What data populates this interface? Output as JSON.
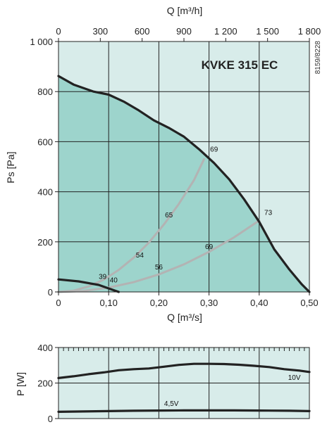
{
  "colors": {
    "bg_light": "#d8ecea",
    "fill_teal": "#9dd4cc",
    "grid": "#222222",
    "curve": "#222222",
    "system_curve": "#b3b3b3"
  },
  "chart_data": [
    {
      "type": "line",
      "title": "KVKE 315 EC",
      "code": "8159/8228",
      "xlabel": "Q [m³/s]",
      "ylabel": "Ps [Pa]",
      "x2label": "Q [m³/h]",
      "xlim": [
        0,
        0.5
      ],
      "ylim": [
        0,
        1000
      ],
      "x2lim": [
        0,
        1800
      ],
      "x_ticks": [
        0,
        0.1,
        0.2,
        0.3,
        0.4,
        0.5
      ],
      "x_tick_labels": [
        "0",
        "0,10",
        "0,20",
        "0,30",
        "0,40",
        "0,50"
      ],
      "y_ticks": [
        0,
        200,
        400,
        600,
        800,
        1000
      ],
      "y_tick_labels": [
        "0",
        "200",
        "400",
        "600",
        "800",
        "1 000"
      ],
      "x2_ticks": [
        0,
        300,
        600,
        900,
        1200,
        1500,
        1800
      ],
      "x2_tick_labels": [
        "0",
        "300",
        "600",
        "900",
        "1 200",
        "1 500",
        "1 800"
      ],
      "fan_curves": [
        {
          "x": [
            0,
            0.03,
            0.07,
            0.1,
            0.13,
            0.16,
            0.19,
            0.22,
            0.25,
            0.28,
            0.31,
            0.34,
            0.37,
            0.4,
            0.43,
            0.46,
            0.485,
            0.5
          ],
          "y": [
            862,
            828,
            800,
            788,
            760,
            725,
            685,
            655,
            620,
            570,
            515,
            450,
            370,
            280,
            170,
            90,
            30,
            0
          ]
        },
        {
          "x": [
            0,
            0.04,
            0.08,
            0.1,
            0.12
          ],
          "y": [
            50,
            42,
            28,
            14,
            0
          ]
        }
      ],
      "system_curves": [
        {
          "x": [
            0,
            0.03,
            0.06,
            0.09,
            0.12,
            0.15,
            0.18,
            0.21,
            0.24,
            0.27,
            0.29
          ],
          "y": [
            0,
            5,
            22,
            49,
            88,
            137,
            197,
            269,
            352,
            446,
            530
          ]
        },
        {
          "x": [
            0,
            0.05,
            0.1,
            0.15,
            0.2,
            0.25,
            0.3,
            0.35,
            0.4
          ],
          "y": [
            0,
            4,
            17,
            39,
            70,
            110,
            160,
            218,
            285
          ]
        }
      ],
      "annotations": [
        {
          "text": "69",
          "x": 0.31,
          "y": 560
        },
        {
          "text": "65",
          "x": 0.22,
          "y": 298
        },
        {
          "text": "54",
          "x": 0.162,
          "y": 138
        },
        {
          "text": "39",
          "x": 0.088,
          "y": 52
        },
        {
          "text": "40",
          "x": 0.11,
          "y": 38
        },
        {
          "text": "56",
          "x": 0.2,
          "y": 90
        },
        {
          "text": "69",
          "x": 0.3,
          "y": 172
        },
        {
          "text": "73",
          "x": 0.418,
          "y": 308
        }
      ]
    },
    {
      "type": "line",
      "ylabel": "P [W]",
      "xlim": [
        0,
        0.5
      ],
      "ylim": [
        0,
        400
      ],
      "y_ticks": [
        0,
        200,
        400
      ],
      "y_tick_labels": [
        "0",
        "200",
        "400"
      ],
      "series": [
        {
          "x": [
            0,
            0.03,
            0.06,
            0.09,
            0.12,
            0.15,
            0.18,
            0.21,
            0.24,
            0.27,
            0.3,
            0.33,
            0.36,
            0.39,
            0.42,
            0.45,
            0.48,
            0.5
          ],
          "y": [
            228,
            238,
            250,
            260,
            272,
            278,
            282,
            292,
            302,
            308,
            308,
            307,
            303,
            297,
            290,
            278,
            270,
            262
          ]
        },
        {
          "x": [
            0,
            0.05,
            0.1,
            0.15,
            0.2,
            0.25,
            0.3,
            0.35,
            0.4,
            0.46,
            0.5
          ],
          "y": [
            38,
            40,
            42,
            44,
            45,
            46,
            46,
            46,
            45,
            44,
            42
          ]
        }
      ],
      "annotations": [
        {
          "text": "10V",
          "x": 0.47,
          "y": 218
        },
        {
          "text": "4,5V",
          "x": 0.225,
          "y": 72
        }
      ]
    }
  ]
}
